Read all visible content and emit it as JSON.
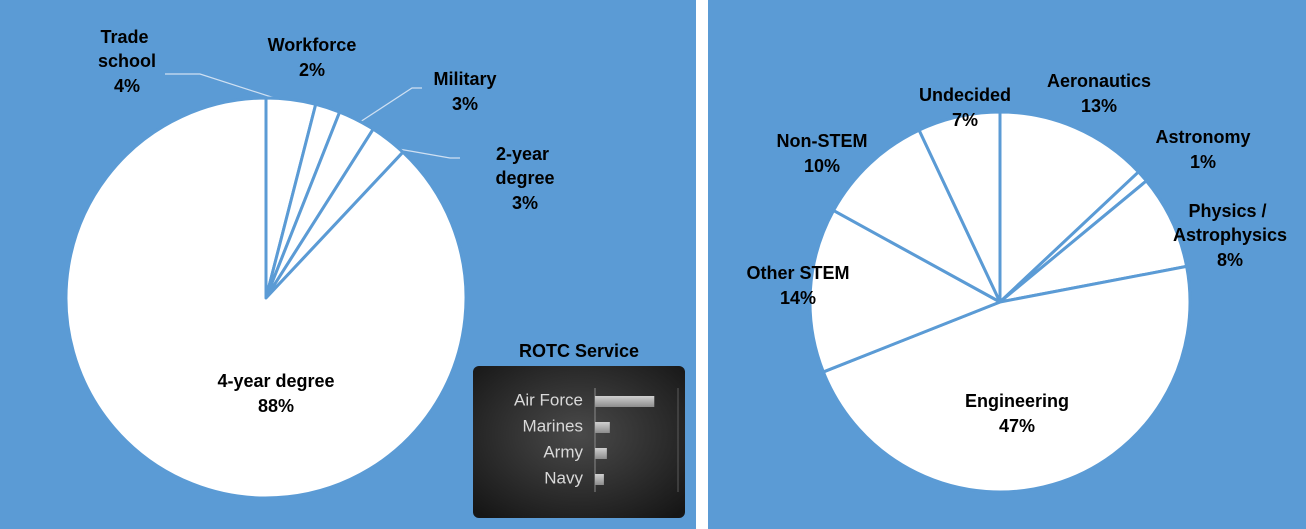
{
  "chart_data": [
    {
      "type": "pie",
      "categories": [
        "Trade school",
        "Workforce",
        "Military",
        "2-year degree",
        "4-year degree"
      ],
      "values": [
        4,
        2,
        3,
        3,
        88
      ],
      "value_labels": [
        "4%",
        "2%",
        "3%",
        "3%",
        "88%"
      ],
      "color": "#ffffff"
    },
    {
      "type": "pie",
      "categories": [
        "Aeronautics",
        "Astronomy",
        "Physics / Astrophysics",
        "Engineering",
        "Other STEM",
        "Non-STEM",
        "Undecided"
      ],
      "values": [
        13,
        1,
        8,
        47,
        14,
        10,
        7
      ],
      "value_labels": [
        "13%",
        "1%",
        "8%",
        "47%",
        "14%",
        "10%",
        "7%"
      ],
      "color": "#ffffff"
    },
    {
      "type": "hbar",
      "title": "ROTC Service",
      "categories": [
        "Air Force",
        "Marines",
        "Army",
        "Navy"
      ],
      "values": [
        20,
        5,
        4,
        3
      ],
      "xlim": [
        0,
        28
      ]
    }
  ]
}
